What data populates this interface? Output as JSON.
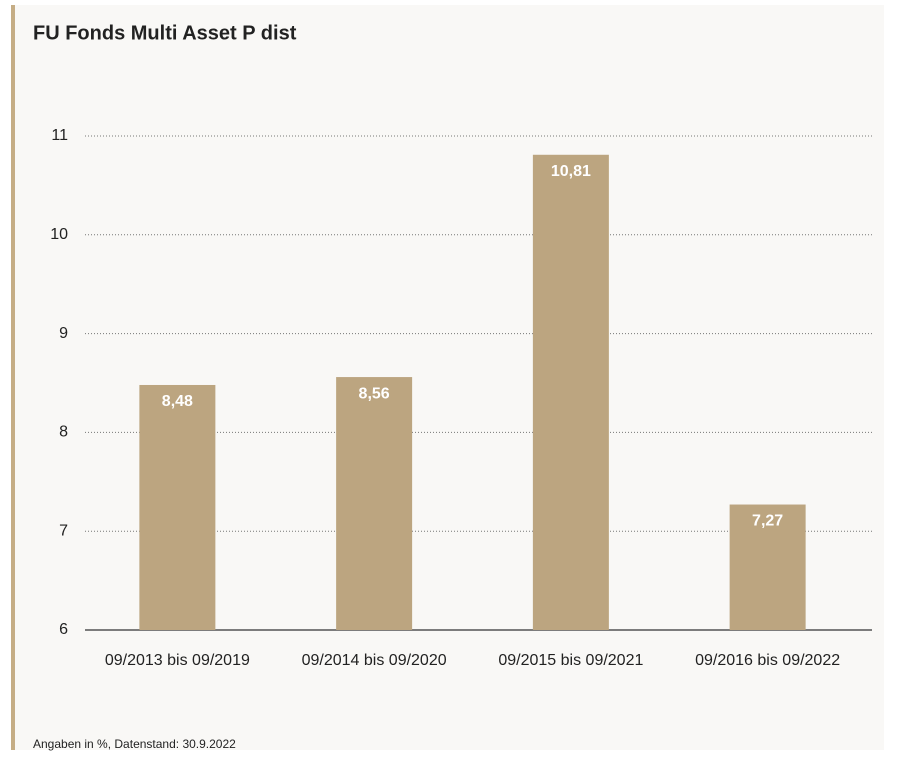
{
  "chart_data": {
    "type": "bar",
    "title": "FU Fonds Multi Asset P dist",
    "categories": [
      "09/2013 bis 09/2019",
      "09/2014 bis 09/2020",
      "09/2015 bis 09/2021",
      "09/2016 bis 09/2022"
    ],
    "values": [
      8.48,
      8.56,
      10.81,
      7.27
    ],
    "value_labels": [
      "8,48",
      "8,56",
      "10,81",
      "7,27"
    ],
    "color": "#bca580",
    "ylim": [
      6,
      11
    ],
    "yticks": [
      6,
      7,
      8,
      9,
      10,
      11
    ],
    "grid": true,
    "footnote": "Angaben in %, Datenstand: 30.9.2022"
  }
}
